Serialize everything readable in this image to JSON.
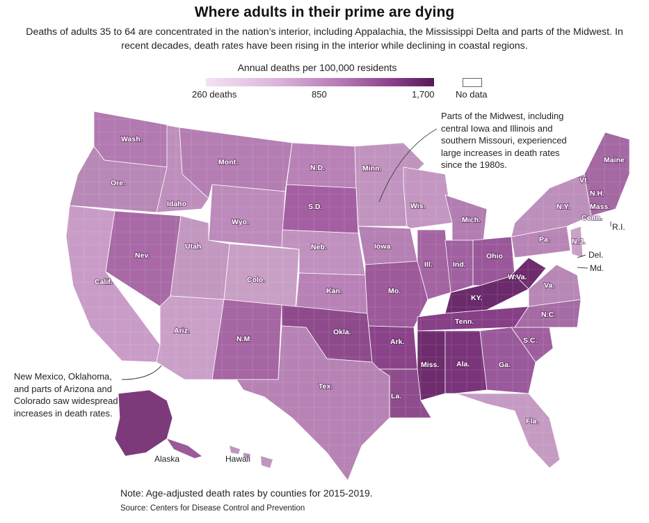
{
  "title": "Where adults in their prime are dying",
  "subtitle": "Deaths of adults 35 to 64 are concentrated in the nation’s interior, including Appalachia, the Mississippi Delta and parts of the Midwest. In recent decades, death rates have been rising in the interior while declining in coastal regions.",
  "legend": {
    "title": "Annual deaths per 100,000 residents",
    "min_label": "260 deaths",
    "mid_label": "850",
    "max_label": "1,700",
    "no_data_label": "No data",
    "colors": [
      "#f4e2f4",
      "#dcb6dc",
      "#b577b3",
      "#8a3f89",
      "#561a56"
    ]
  },
  "annotations": {
    "midwest": "Parts of the Midwest, including central Iowa and Illinois and southern Missouri, experienced large increases in death rates since the 1980s.",
    "southwest": "New Mexico, Oklahoma, and parts of Arizona and Colorado saw widespread increases in death rates."
  },
  "states": {
    "wash": "Wash.",
    "ore": "Ore.",
    "calif": "Calif.",
    "idaho": "Idaho",
    "nev": "Nev.",
    "mont": "Mont.",
    "wyo": "Wyo.",
    "utah": "Utah",
    "ariz": "Ariz.",
    "colo": "Colo.",
    "nm": "N.M.",
    "nd": "N.D.",
    "sd": "S.D.",
    "neb": "Neb.",
    "kan": "Kan.",
    "okla": "Okla.",
    "tex": "Tex.",
    "minn": "Minn.",
    "iowa": "Iowa",
    "mo": "Mo.",
    "ark": "Ark.",
    "la": "La.",
    "wis": "Wis.",
    "ill": "Ill.",
    "ind": "Ind.",
    "mich": "Mich.",
    "ohio": "Ohio",
    "ky": "KY.",
    "tenn": "Tenn.",
    "miss": "Miss.",
    "ala": "Ala.",
    "ga": "Ga.",
    "fla": "Fla.",
    "sc": "S.C.",
    "nc": "N.C.",
    "va": "Va.",
    "wva": "W.Va.",
    "pa": "Pa.",
    "ny": "N.Y.",
    "vt": "Vt.",
    "nh": "N.H.",
    "maine": "Maine",
    "mass": "Mass.",
    "conn": "Conn.",
    "nj": "N.J.",
    "ri": "R.I.",
    "del": "Del.",
    "md": "Md.",
    "alaska": "Alaska",
    "hawaii": "Hawaii"
  },
  "note": "Note: Age-adjusted death rates by counties for 2015-2019.",
  "source": "Source: Centers for Disease Control and Prevention"
}
